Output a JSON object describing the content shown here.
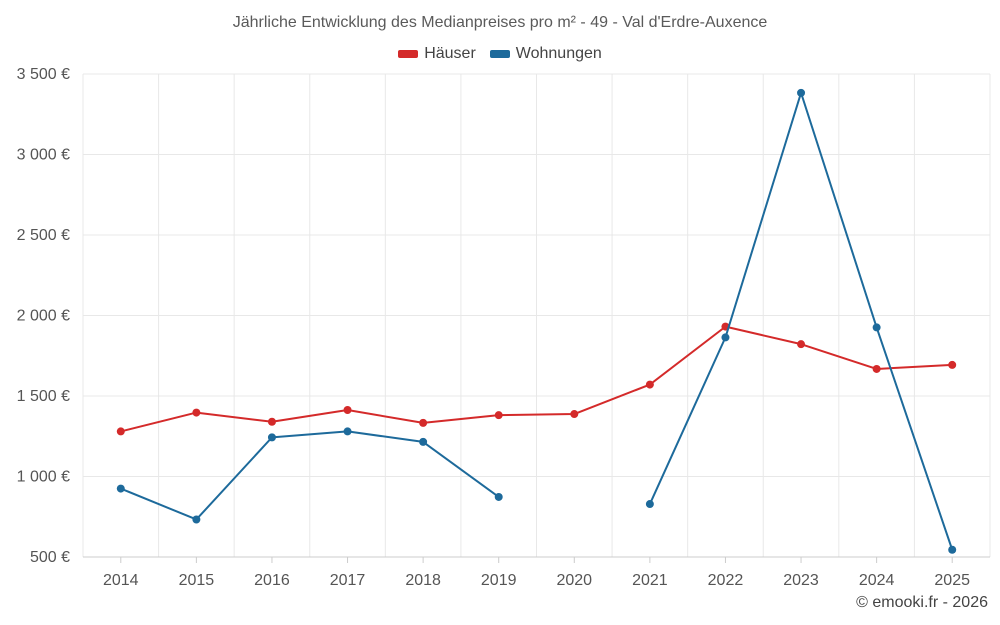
{
  "chart_data": {
    "type": "line",
    "title": "Jährliche Entwicklung des Medianpreises pro m² - 49 - Val d'Erdre-Auxence",
    "categories": [
      "2014",
      "2015",
      "2016",
      "2017",
      "2018",
      "2019",
      "2020",
      "2021",
      "2022",
      "2023",
      "2024",
      "2025"
    ],
    "series": [
      {
        "name": "Häuser",
        "color": "#d42a2a",
        "values": [
          1280,
          1397,
          1340,
          1413,
          1333,
          1381,
          1388,
          1571,
          1931,
          1822,
          1668,
          1693
        ]
      },
      {
        "name": "Wohnungen",
        "color": "#1d6a9b",
        "values": [
          925,
          733,
          1243,
          1280,
          1215,
          873,
          null,
          829,
          1864,
          3383,
          1926,
          545
        ]
      }
    ],
    "ylim": [
      500,
      3500
    ],
    "yticks": [
      500,
      1000,
      1500,
      2000,
      2500,
      3000,
      3500
    ],
    "ytick_labels": [
      "500 €",
      "1 000 €",
      "1 500 €",
      "2 000 €",
      "2 500 €",
      "3 000 €",
      "3 500 €"
    ],
    "xlabel": "",
    "ylabel": "",
    "grid": true,
    "legend_position": "top-center"
  },
  "footer": "© emooki.fr - 2026",
  "colors": {
    "grid": "#e8e8e8",
    "axis_text": "#555555"
  }
}
